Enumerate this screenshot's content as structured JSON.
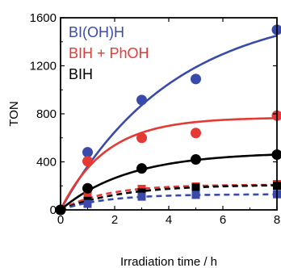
{
  "chart_data": {
    "type": "scatter",
    "xlabel": "Irradiation time / h",
    "ylabel": "TON",
    "xlim": [
      0,
      8
    ],
    "ylim": [
      0,
      1600
    ],
    "x_ticks": [
      0,
      2,
      4,
      6,
      8
    ],
    "y_ticks": [
      0,
      400,
      800,
      1200,
      1600
    ],
    "legend_position": "top-left",
    "series": [
      {
        "name": "BI(OH)H",
        "color": "#3a4aaa",
        "marker": "circle",
        "points": [
          [
            0,
            0
          ],
          [
            1,
            480
          ],
          [
            3,
            915
          ],
          [
            5,
            1090
          ],
          [
            8,
            1500
          ]
        ],
        "fit": {
          "style": "solid",
          "a": 1700,
          "k": 0.24
        }
      },
      {
        "name": "BIH + PhOH",
        "color": "#e53935",
        "marker": "circle",
        "points": [
          [
            0,
            0
          ],
          [
            1,
            405
          ],
          [
            3,
            600
          ],
          [
            5,
            640
          ],
          [
            8,
            785
          ]
        ],
        "fit": {
          "style": "solid",
          "a": 770,
          "k": 0.6
        }
      },
      {
        "name": "BIH",
        "color": "#000000",
        "marker": "circle",
        "points": [
          [
            0,
            0
          ],
          [
            1,
            180
          ],
          [
            3,
            345
          ],
          [
            5,
            420
          ],
          [
            8,
            460
          ]
        ],
        "fit": {
          "style": "solid",
          "a": 480,
          "k": 0.4
        }
      },
      {
        "name": "",
        "color": "#e53935",
        "marker": "square",
        "points": [
          [
            0,
            0
          ],
          [
            1,
            125
          ],
          [
            3,
            175
          ],
          [
            5,
            195
          ],
          [
            8,
            215
          ]
        ],
        "fit": {
          "style": "dashed",
          "a": 210,
          "k": 0.6
        }
      },
      {
        "name": "",
        "color": "#000000",
        "marker": "square",
        "points": [
          [
            0,
            0
          ],
          [
            1,
            75
          ],
          [
            3,
            145
          ],
          [
            5,
            185
          ],
          [
            8,
            200
          ]
        ],
        "fit": {
          "style": "dashed",
          "a": 210,
          "k": 0.45
        }
      },
      {
        "name": "",
        "color": "#3a4aaa",
        "marker": "square",
        "points": [
          [
            0,
            0
          ],
          [
            1,
            50
          ],
          [
            3,
            110
          ],
          [
            5,
            125
          ],
          [
            8,
            130
          ]
        ],
        "fit": {
          "style": "dashed",
          "a": 130,
          "k": 0.6
        }
      }
    ],
    "legend": [
      {
        "label": "BI(OH)H",
        "color": "#3a4aaa"
      },
      {
        "label": "BIH + PhOH",
        "color": "#e53935"
      },
      {
        "label": "BIH",
        "color": "#000000"
      }
    ]
  }
}
